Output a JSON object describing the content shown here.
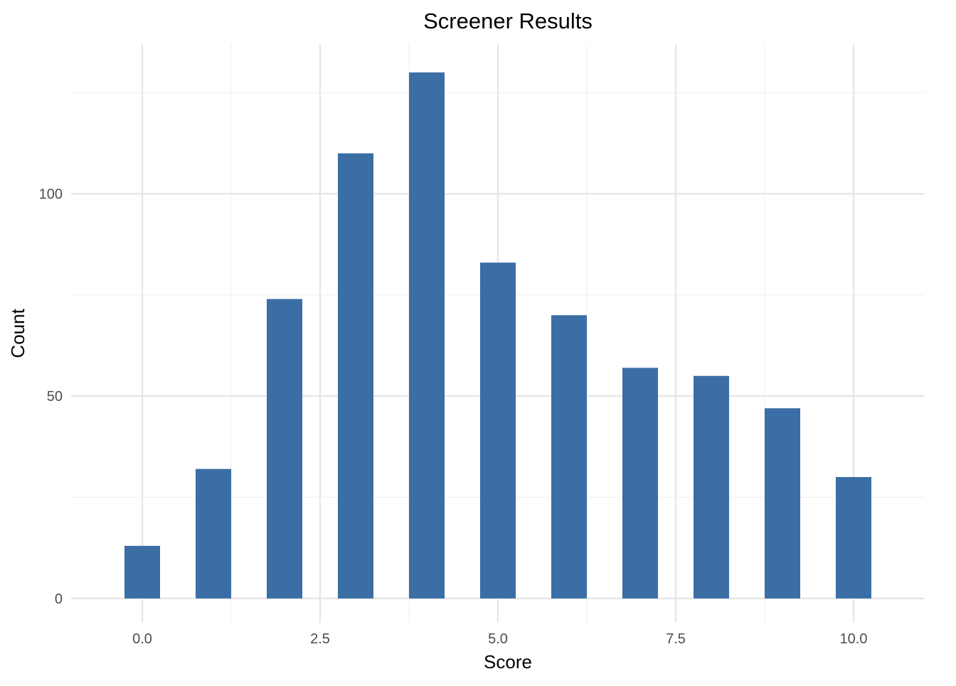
{
  "chart_data": {
    "type": "bar",
    "title": "Screener Results",
    "xlabel": "Score",
    "ylabel": "Count",
    "x": [
      0,
      1,
      2,
      3,
      4,
      5,
      6,
      7,
      8,
      9,
      10
    ],
    "values": [
      13,
      32,
      74,
      110,
      130,
      83,
      70,
      57,
      55,
      47,
      30
    ],
    "xlim": [
      -1,
      11
    ],
    "ylim": [
      -6,
      137
    ],
    "x_ticks": [
      0,
      2.5,
      5,
      7.5,
      10
    ],
    "x_tick_labels": [
      "0.0",
      "2.5",
      "5.0",
      "7.5",
      "10.0"
    ],
    "y_ticks": [
      0,
      50,
      100
    ],
    "y_tick_labels": [
      "0",
      "50",
      "100"
    ],
    "bar_color": "#3a6ea5",
    "grid": true,
    "legend": "none"
  }
}
